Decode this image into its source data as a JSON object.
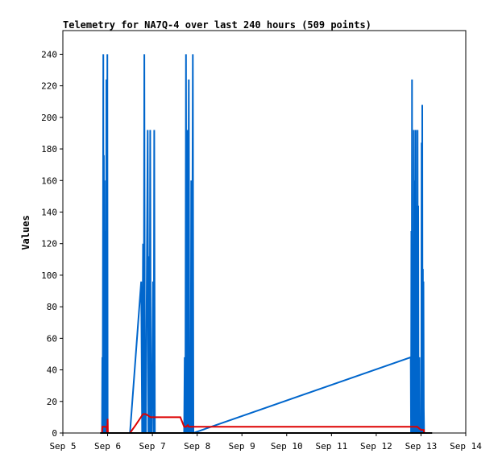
{
  "chart_data": {
    "type": "line",
    "title": "Telemetry for NA7Q-4 over last 240 hours (509 points)",
    "xlabel": "",
    "ylabel": "Values",
    "x_ticks": [
      "Sep 5",
      "Sep 6",
      "Sep 7",
      "Sep 8",
      "Sep 9",
      "Sep 10",
      "Sep 11",
      "Sep 12",
      "Sep 13",
      "Sep 14"
    ],
    "xlim": [
      "Sep 5",
      "Sep 14"
    ],
    "y_ticks": [
      0,
      20,
      40,
      60,
      80,
      100,
      120,
      140,
      160,
      180,
      200,
      220,
      240
    ],
    "ylim": [
      0,
      255
    ],
    "grid": false,
    "colors": {
      "blue": "#0066cc",
      "red": "#dd0000",
      "black": "#000000"
    },
    "series": [
      {
        "color": "#0066cc",
        "points": [
          [
            "Sep 5 21:00",
            0
          ],
          [
            "Sep 5 21:10",
            48
          ],
          [
            "Sep 5 21:20",
            0
          ],
          [
            "Sep 5 21:40",
            240
          ],
          [
            "Sep 5 21:50",
            0
          ],
          [
            "Sep 5 22:00",
            176
          ],
          [
            "Sep 5 22:10",
            0
          ],
          [
            "Sep 5 22:20",
            160
          ],
          [
            "Sep 5 22:30",
            0
          ],
          [
            "Sep 5 22:40",
            64
          ],
          [
            "Sep 5 22:50",
            0
          ],
          [
            "Sep 5 23:00",
            128
          ],
          [
            "Sep 5 23:10",
            0
          ],
          [
            "Sep 5 23:20",
            224
          ],
          [
            "Sep 5 23:30",
            0
          ],
          [
            "Sep 5 23:40",
            0
          ],
          [
            "Sep 5 23:50",
            240
          ],
          [
            "Sep 6 00:00",
            0
          ],
          [
            "Sep 6 12:00",
            0
          ],
          [
            "Sep 6 16:00",
            64
          ],
          [
            "Sep 6 18:00",
            96
          ],
          [
            "Sep 6 18:30",
            0
          ],
          [
            "Sep 6 19:00",
            120
          ],
          [
            "Sep 6 19:20",
            0
          ],
          [
            "Sep 6 19:40",
            240
          ],
          [
            "Sep 6 20:00",
            0
          ],
          [
            "Sep 6 20:30",
            0
          ],
          [
            "Sep 6 21:30",
            192
          ],
          [
            "Sep 6 21:50",
            0
          ],
          [
            "Sep 6 22:10",
            112
          ],
          [
            "Sep 6 22:30",
            0
          ],
          [
            "Sep 6 22:50",
            192
          ],
          [
            "Sep 6 23:10",
            0
          ],
          [
            "Sep 6 23:40",
            0
          ],
          [
            "Sep 7 00:20",
            96
          ],
          [
            "Sep 7 00:40",
            0
          ],
          [
            "Sep 7 01:00",
            192
          ],
          [
            "Sep 7 01:20",
            0
          ],
          [
            "Sep 7 17:00",
            0
          ],
          [
            "Sep 7 17:20",
            48
          ],
          [
            "Sep 7 17:40",
            0
          ],
          [
            "Sep 7 18:00",
            240
          ],
          [
            "Sep 7 18:20",
            0
          ],
          [
            "Sep 7 18:40",
            192
          ],
          [
            "Sep 7 19:00",
            0
          ],
          [
            "Sep 7 19:30",
            224
          ],
          [
            "Sep 7 19:50",
            0
          ],
          [
            "Sep 7 20:10",
            40
          ],
          [
            "Sep 7 20:30",
            0
          ],
          [
            "Sep 7 20:50",
            160
          ],
          [
            "Sep 7 21:10",
            0
          ],
          [
            "Sep 7 21:40",
            240
          ],
          [
            "Sep 7 22:00",
            0
          ],
          [
            "Sep 12 18:30",
            48
          ],
          [
            "Sep 12 18:40",
            0
          ],
          [
            "Sep 12 18:50",
            128
          ],
          [
            "Sep 12 19:00",
            0
          ],
          [
            "Sep 12 19:10",
            224
          ],
          [
            "Sep 12 19:20",
            0
          ],
          [
            "Sep 12 19:30",
            96
          ],
          [
            "Sep 12 19:40",
            0
          ],
          [
            "Sep 12 19:50",
            112
          ],
          [
            "Sep 12 20:00",
            0
          ],
          [
            "Sep 12 20:10",
            192
          ],
          [
            "Sep 12 20:20",
            0
          ],
          [
            "Sep 12 20:30",
            160
          ],
          [
            "Sep 12 20:40",
            0
          ],
          [
            "Sep 12 20:50",
            96
          ],
          [
            "Sep 12 21:00",
            0
          ],
          [
            "Sep 12 21:10",
            192
          ],
          [
            "Sep 12 21:20",
            0
          ],
          [
            "Sep 12 21:30",
            144
          ],
          [
            "Sep 12 21:40",
            0
          ],
          [
            "Sep 12 22:00",
            0
          ],
          [
            "Sep 12 22:10",
            192
          ],
          [
            "Sep 12 22:20",
            0
          ],
          [
            "Sep 12 22:30",
            144
          ],
          [
            "Sep 12 22:40",
            0
          ],
          [
            "Sep 12 23:00",
            0
          ],
          [
            "Sep 12 23:10",
            48
          ],
          [
            "Sep 12 23:20",
            0
          ],
          [
            "Sep 12 23:30",
            0
          ],
          [
            "Sep 13 00:10",
            0
          ],
          [
            "Sep 13 00:20",
            184
          ],
          [
            "Sep 13 00:30",
            0
          ],
          [
            "Sep 13 00:40",
            208
          ],
          [
            "Sep 13 00:50",
            0
          ],
          [
            "Sep 13 01:00",
            104
          ],
          [
            "Sep 13 01:10",
            16
          ],
          [
            "Sep 13 01:20",
            96
          ],
          [
            "Sep 13 01:30",
            16
          ],
          [
            "Sep 13 01:40",
            0
          ]
        ]
      },
      {
        "color": "#dd0000",
        "points": [
          [
            "Sep 5 21:00",
            0
          ],
          [
            "Sep 5 21:10",
            4
          ],
          [
            "Sep 5 22:00",
            4
          ],
          [
            "Sep 5 23:30",
            4
          ],
          [
            "Sep 5 23:45",
            0
          ],
          [
            "Sep 6 00:00",
            9
          ],
          [
            "Sep 6 00:10",
            0
          ],
          [
            "Sep 6 12:00",
            0
          ],
          [
            "Sep 6 15:00",
            5
          ],
          [
            "Sep 6 19:00",
            12
          ],
          [
            "Sep 6 20:30",
            12
          ],
          [
            "Sep 6 23:00",
            10
          ],
          [
            "Sep 7 12:00",
            10
          ],
          [
            "Sep 7 15:00",
            10
          ],
          [
            "Sep 7 17:00",
            4
          ],
          [
            "Sep 7 18:00",
            4
          ],
          [
            "Sep 7 19:00",
            5
          ],
          [
            "Sep 7 19:30",
            4
          ],
          [
            "Sep 7 20:00",
            4
          ],
          [
            "Sep 7 22:00",
            4
          ],
          [
            "Sep 12 18:00",
            4
          ],
          [
            "Sep 12 19:00",
            4
          ],
          [
            "Sep 12 22:00",
            4
          ],
          [
            "Sep 13 00:00",
            2
          ],
          [
            "Sep 13 01:30",
            2
          ],
          [
            "Sep 13 01:40",
            0
          ]
        ]
      },
      {
        "color": "#000000",
        "points": [
          [
            "Sep 5 20:00",
            0
          ],
          [
            "Sep 13 06:00",
            0
          ]
        ]
      }
    ]
  }
}
